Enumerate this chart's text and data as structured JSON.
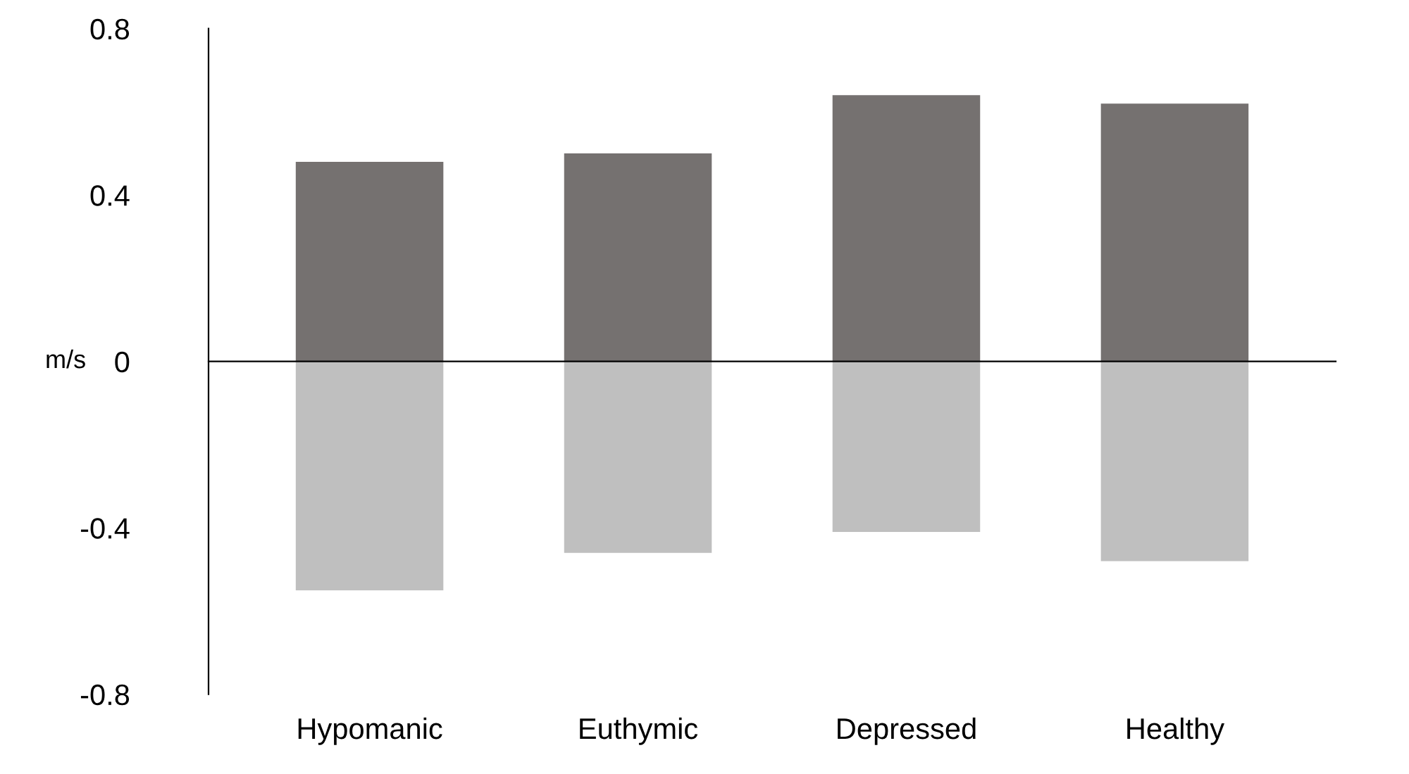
{
  "chart_data": {
    "type": "bar",
    "categories": [
      "Hypomanic",
      "Euthymic",
      "Depressed",
      "Healthy"
    ],
    "series": [
      {
        "color": "#757170",
        "values": [
          0.48,
          0.5,
          0.64,
          0.62
        ]
      },
      {
        "color": "#bfbfbf",
        "values": [
          -0.55,
          -0.46,
          -0.41,
          -0.48
        ]
      }
    ],
    "stacked": true,
    "ylabel": "m/s",
    "ylim": [
      -0.8,
      0.8
    ],
    "yticks": [
      {
        "value": -0.8,
        "label": "-0.8"
      },
      {
        "value": -0.4,
        "label": "-0.4"
      },
      0,
      0.4,
      0.8
    ],
    "legend": false
  }
}
